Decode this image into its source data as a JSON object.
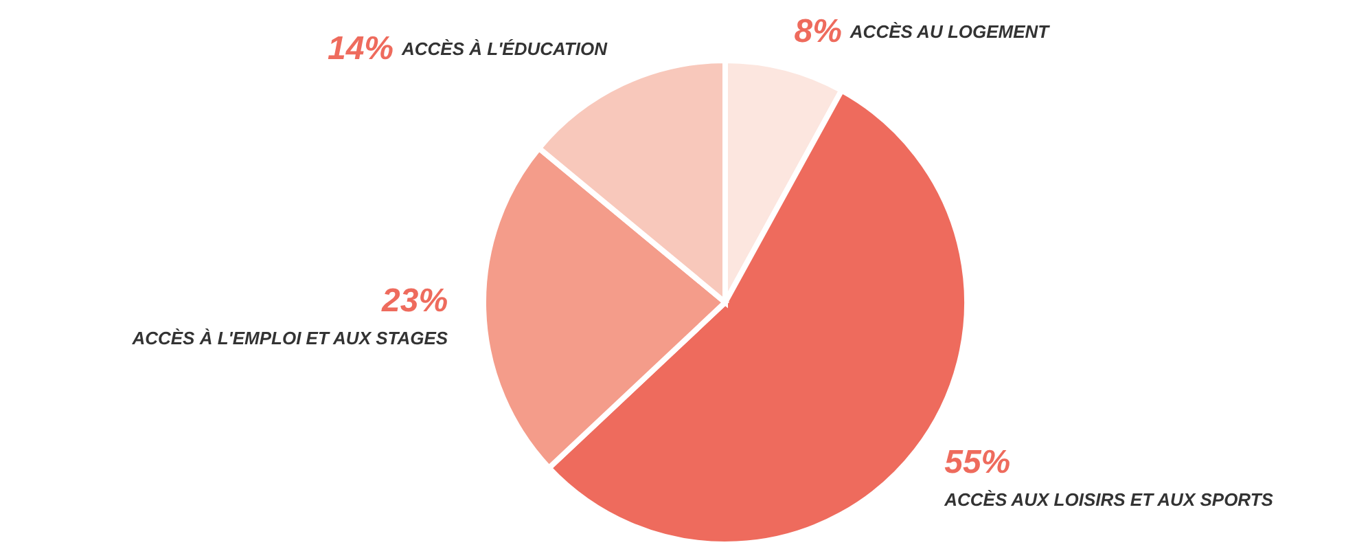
{
  "chart_data": {
    "type": "pie",
    "categories": [
      "ACCÈS AU LOGEMENT",
      "ACCÈS AUX LOISIRS ET AUX SPORTS",
      "ACCÈS À L'EMPLOI ET AUX STAGES",
      "ACCÈS À L'ÉDUCATION"
    ],
    "values": [
      8,
      55,
      23,
      14
    ],
    "value_labels": [
      "8%",
      "55%",
      "23%",
      "14%"
    ],
    "colors": [
      "#fce6df",
      "#ee6b5d",
      "#f49c8a",
      "#f8c8bb"
    ],
    "legend": false
  }
}
